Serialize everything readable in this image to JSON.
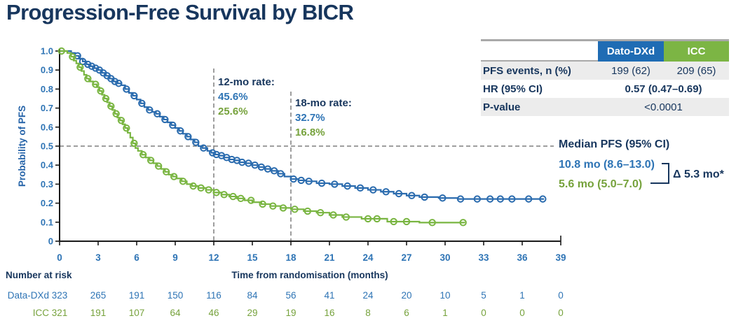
{
  "page": {
    "title": "Progression-Free Survival by BICR"
  },
  "colors": {
    "navy": "#17365d",
    "text_blue": "#2e74b5",
    "text_green": "#76a23c",
    "curve_blue": "#2a6bae",
    "curve_green": "#79b541",
    "header_blue": "#1f6cb4",
    "header_green": "#7cb544",
    "row_shade": "#ececec",
    "dash_gray": "#7f7f7f"
  },
  "stats_table": {
    "columns": [
      "Dato-DXd",
      "ICC"
    ],
    "rows": [
      {
        "label": "PFS events, n (%)",
        "values": [
          "199 (62)",
          "209 (65)"
        ]
      },
      {
        "label": "HR (95% CI)",
        "value": "0.57 (0.47–0.69)"
      },
      {
        "label": "P-value",
        "value": "<0.0001"
      }
    ]
  },
  "annotations": {
    "m12": {
      "label": "12-mo rate:",
      "dato": "45.6%",
      "icc": "25.6%",
      "month": 12
    },
    "m18": {
      "label": "18-mo rate:",
      "dato": "32.7%",
      "icc": "16.8%",
      "month": 18
    }
  },
  "median": {
    "title": "Median PFS (95% CI)",
    "dato": "10.8 mo (8.6–13.0)",
    "icc": "5.6 mo (5.0–7.0)",
    "delta": "Δ 5.3 mo*"
  },
  "risk_table": {
    "title": "Number at risk",
    "rows": [
      {
        "label": "Data-DXd",
        "values": [
          323,
          265,
          191,
          150,
          116,
          84,
          56,
          41,
          24,
          20,
          10,
          5,
          1,
          0
        ]
      },
      {
        "label": "ICC",
        "values": [
          321,
          191,
          107,
          64,
          46,
          29,
          19,
          16,
          8,
          6,
          1,
          0,
          0,
          0
        ]
      }
    ]
  },
  "chart_data": {
    "type": "line",
    "subtype": "kaplan-meier",
    "xlabel": "Time from randomisation (months)",
    "ylabel": "Probability of PFS",
    "xlim": [
      0,
      39
    ],
    "ylim": [
      0,
      1.0
    ],
    "x_ticks": [
      0,
      3,
      6,
      9,
      12,
      15,
      18,
      21,
      24,
      27,
      30,
      33,
      36,
      39
    ],
    "y_ticks": [
      {
        "v": 0,
        "label": "0"
      },
      {
        "v": 0.1,
        "label": "0.1"
      },
      {
        "v": 0.2,
        "label": "0.2"
      },
      {
        "v": 0.3,
        "label": "0.3"
      },
      {
        "v": 0.4,
        "label": "0.4"
      },
      {
        "v": 0.5,
        "label": "0.5"
      },
      {
        "v": 0.6,
        "label": "0.6"
      },
      {
        "v": 0.7,
        "label": "0.7"
      },
      {
        "v": 0.8,
        "label": "0.8"
      },
      {
        "v": 0.9,
        "label": "0.9"
      },
      {
        "v": 1.0,
        "label": "1.0"
      }
    ],
    "reference_lines": {
      "h": 0.5,
      "v": [
        12,
        18
      ]
    },
    "series": [
      {
        "name": "Dato-DXd",
        "color": "#2a6bae",
        "median_months": 10.8,
        "rate_12mo": 0.456,
        "rate_18mo": 0.327,
        "steps": [
          [
            0,
            1
          ],
          [
            0.9,
            0.99
          ],
          [
            1.2,
            0.975
          ],
          [
            1.5,
            0.96
          ],
          [
            1.8,
            0.945
          ],
          [
            2.1,
            0.93
          ],
          [
            2.4,
            0.92
          ],
          [
            2.7,
            0.91
          ],
          [
            3.0,
            0.9
          ],
          [
            3.3,
            0.885
          ],
          [
            3.6,
            0.87
          ],
          [
            3.9,
            0.855
          ],
          [
            4.2,
            0.84
          ],
          [
            4.5,
            0.83
          ],
          [
            4.8,
            0.82
          ],
          [
            5.1,
            0.8
          ],
          [
            5.4,
            0.78
          ],
          [
            5.7,
            0.765
          ],
          [
            6.0,
            0.745
          ],
          [
            6.3,
            0.725
          ],
          [
            6.6,
            0.705
          ],
          [
            6.9,
            0.69
          ],
          [
            7.2,
            0.68
          ],
          [
            7.5,
            0.67
          ],
          [
            7.8,
            0.655
          ],
          [
            8.1,
            0.64
          ],
          [
            8.4,
            0.625
          ],
          [
            8.7,
            0.61
          ],
          [
            9.0,
            0.595
          ],
          [
            9.3,
            0.58
          ],
          [
            9.6,
            0.565
          ],
          [
            9.9,
            0.55
          ],
          [
            10.2,
            0.535
          ],
          [
            10.5,
            0.52
          ],
          [
            10.8,
            0.5
          ],
          [
            11.1,
            0.49
          ],
          [
            11.5,
            0.475
          ],
          [
            11.8,
            0.465
          ],
          [
            12.0,
            0.456
          ],
          [
            12.4,
            0.45
          ],
          [
            12.8,
            0.44
          ],
          [
            13.2,
            0.43
          ],
          [
            13.6,
            0.425
          ],
          [
            14.0,
            0.415
          ],
          [
            14.5,
            0.41
          ],
          [
            15.0,
            0.4
          ],
          [
            15.5,
            0.39
          ],
          [
            16.0,
            0.38
          ],
          [
            16.5,
            0.37
          ],
          [
            17.0,
            0.355
          ],
          [
            17.5,
            0.34
          ],
          [
            18.0,
            0.327
          ],
          [
            18.6,
            0.32
          ],
          [
            19.2,
            0.315
          ],
          [
            20.0,
            0.305
          ],
          [
            21.0,
            0.3
          ],
          [
            22.0,
            0.29
          ],
          [
            23.0,
            0.28
          ],
          [
            24.0,
            0.27
          ],
          [
            25.0,
            0.26
          ],
          [
            26.0,
            0.25
          ],
          [
            27.0,
            0.24
          ],
          [
            28.0,
            0.232
          ],
          [
            29.5,
            0.227
          ],
          [
            31.0,
            0.222
          ],
          [
            37.7,
            0.222
          ]
        ],
        "censor_times": [
          1.4,
          1.8,
          2.2,
          2.5,
          2.8,
          3.1,
          3.4,
          3.7,
          4.0,
          4.3,
          4.6,
          5.2,
          5.8,
          6.4,
          7.0,
          7.6,
          8.2,
          8.8,
          9.4,
          10.0,
          10.6,
          11.2,
          11.9,
          12.2,
          12.6,
          13.0,
          13.4,
          13.8,
          14.2,
          14.7,
          15.2,
          15.7,
          16.2,
          16.7,
          17.2,
          18.2,
          18.8,
          19.4,
          20.4,
          21.4,
          22.4,
          23.4,
          24.4,
          25.4,
          26.4,
          27.4,
          28.4,
          29.8,
          31.2,
          32.5,
          33.5,
          34.3,
          35.2,
          36.5,
          37.6
        ]
      },
      {
        "name": "ICC",
        "color": "#79b541",
        "median_months": 5.6,
        "rate_12mo": 0.256,
        "rate_18mo": 0.168,
        "steps": [
          [
            0,
            1
          ],
          [
            0.6,
            0.99
          ],
          [
            0.9,
            0.97
          ],
          [
            1.1,
            0.95
          ],
          [
            1.3,
            0.935
          ],
          [
            1.5,
            0.915
          ],
          [
            1.7,
            0.895
          ],
          [
            1.9,
            0.875
          ],
          [
            2.1,
            0.855
          ],
          [
            2.3,
            0.84
          ],
          [
            2.6,
            0.825
          ],
          [
            2.9,
            0.81
          ],
          [
            3.1,
            0.79
          ],
          [
            3.3,
            0.77
          ],
          [
            3.5,
            0.75
          ],
          [
            3.7,
            0.73
          ],
          [
            3.9,
            0.71
          ],
          [
            4.1,
            0.69
          ],
          [
            4.3,
            0.67
          ],
          [
            4.5,
            0.65
          ],
          [
            4.7,
            0.635
          ],
          [
            4.9,
            0.615
          ],
          [
            5.1,
            0.595
          ],
          [
            5.3,
            0.57
          ],
          [
            5.5,
            0.545
          ],
          [
            5.7,
            0.515
          ],
          [
            5.9,
            0.49
          ],
          [
            6.1,
            0.475
          ],
          [
            6.4,
            0.455
          ],
          [
            6.7,
            0.44
          ],
          [
            7.0,
            0.425
          ],
          [
            7.3,
            0.41
          ],
          [
            7.6,
            0.395
          ],
          [
            7.9,
            0.38
          ],
          [
            8.2,
            0.365
          ],
          [
            8.5,
            0.35
          ],
          [
            8.8,
            0.34
          ],
          [
            9.1,
            0.33
          ],
          [
            9.5,
            0.315
          ],
          [
            9.9,
            0.3
          ],
          [
            10.3,
            0.29
          ],
          [
            10.8,
            0.28
          ],
          [
            11.4,
            0.27
          ],
          [
            12.0,
            0.256
          ],
          [
            12.6,
            0.245
          ],
          [
            13.2,
            0.235
          ],
          [
            13.8,
            0.225
          ],
          [
            14.4,
            0.215
          ],
          [
            15.0,
            0.205
          ],
          [
            15.7,
            0.195
          ],
          [
            16.4,
            0.185
          ],
          [
            17.2,
            0.175
          ],
          [
            18.0,
            0.168
          ],
          [
            19.0,
            0.158
          ],
          [
            20.0,
            0.15
          ],
          [
            21.0,
            0.138
          ],
          [
            22.0,
            0.127
          ],
          [
            23.5,
            0.118
          ],
          [
            25.5,
            0.103
          ],
          [
            28.0,
            0.098
          ],
          [
            31.5,
            0.095
          ]
        ],
        "censor_times": [
          0.15,
          1.0,
          1.6,
          2.2,
          2.8,
          3.2,
          3.6,
          4.0,
          4.4,
          4.8,
          5.2,
          5.8,
          6.5,
          7.1,
          7.7,
          8.3,
          8.9,
          9.6,
          10.4,
          11.0,
          11.6,
          12.2,
          12.8,
          13.5,
          14.1,
          14.9,
          15.8,
          16.6,
          17.4,
          18.3,
          19.3,
          20.3,
          21.3,
          22.3,
          24.0,
          24.7,
          26.0,
          27.0,
          29.0,
          31.4
        ]
      }
    ]
  }
}
